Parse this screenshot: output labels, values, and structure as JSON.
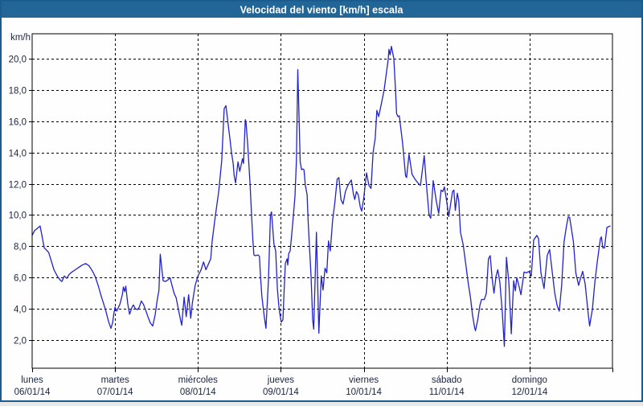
{
  "window": {
    "title": "Velocidad del viento [km/h] escala"
  },
  "colors": {
    "titlebar_bg": "#226597",
    "titlebar_text": "#ffffff",
    "window_border": "#1b5c8e",
    "chart_bg": "#fdfefd",
    "grid_line": "#000000",
    "axis_text": "#1b2440",
    "series_line": "#2222cc"
  },
  "chart_data": {
    "type": "line",
    "title": "Velocidad del viento [km/h] escala",
    "legend": "none",
    "y_axis": {
      "unit_label": "km/h",
      "ylim": [
        0.2,
        21.6
      ],
      "grid": "dashed",
      "ticks": [
        {
          "value": 20,
          "label": "20,0"
        },
        {
          "value": 18,
          "label": "18,0"
        },
        {
          "value": 16,
          "label": "16,0"
        },
        {
          "value": 14,
          "label": "14,0"
        },
        {
          "value": 12,
          "label": "12,0"
        },
        {
          "value": 10,
          "label": "10,0"
        },
        {
          "value": 8,
          "label": "8,0"
        },
        {
          "value": 6,
          "label": "6,0"
        },
        {
          "value": 4,
          "label": "4,0"
        },
        {
          "value": 2,
          "label": "2,0"
        }
      ]
    },
    "x_axis": {
      "total_hours": 168,
      "hours_per_day": 24,
      "grid": "dashed",
      "days": [
        {
          "label": "lunes",
          "date": "06/01/14",
          "start_hour": 0
        },
        {
          "label": "martes",
          "date": "07/01/14",
          "start_hour": 24
        },
        {
          "label": "miércoles",
          "date": "08/01/14",
          "start_hour": 48
        },
        {
          "label": "jueves",
          "date": "09/01/14",
          "start_hour": 72
        },
        {
          "label": "viernes",
          "date": "10/01/14",
          "start_hour": 96
        },
        {
          "label": "sábado",
          "date": "11/01/14",
          "start_hour": 120
        },
        {
          "label": "domingo",
          "date": "12/01/14",
          "start_hour": 144
        }
      ]
    },
    "series": [
      {
        "name": "velocidad del viento",
        "unit": "km/h",
        "color": "#2222cc",
        "points": [
          [
            0,
            8.7
          ],
          [
            0.7,
            9.0
          ],
          [
            2.3,
            9.3
          ],
          [
            3.0,
            8.5
          ],
          [
            3.5,
            7.9
          ],
          [
            4.2,
            7.75
          ],
          [
            4.8,
            7.6
          ],
          [
            5.5,
            7.1
          ],
          [
            6.3,
            6.5
          ],
          [
            7.4,
            6.05
          ],
          [
            8.1,
            5.85
          ],
          [
            8.6,
            5.75
          ],
          [
            9.3,
            6.1
          ],
          [
            10.0,
            5.95
          ],
          [
            10.7,
            6.2
          ],
          [
            11.5,
            6.35
          ],
          [
            12.5,
            6.5
          ],
          [
            13.5,
            6.65
          ],
          [
            14.5,
            6.8
          ],
          [
            15.5,
            6.9
          ],
          [
            16.5,
            6.75
          ],
          [
            17.5,
            6.4
          ],
          [
            18.3,
            6.05
          ],
          [
            19.1,
            5.5
          ],
          [
            20.0,
            4.8
          ],
          [
            20.6,
            4.4
          ],
          [
            21.4,
            3.8
          ],
          [
            22.1,
            3.2
          ],
          [
            22.8,
            2.75
          ],
          [
            23.3,
            3.1
          ],
          [
            23.6,
            3.6
          ],
          [
            24.0,
            4.1
          ],
          [
            24.5,
            3.85
          ],
          [
            25.4,
            4.3
          ],
          [
            26.1,
            4.9
          ],
          [
            26.4,
            5.4
          ],
          [
            26.8,
            5.1
          ],
          [
            27.1,
            5.45
          ],
          [
            27.7,
            4.3
          ],
          [
            28.2,
            3.65
          ],
          [
            28.9,
            4.1
          ],
          [
            29.3,
            4.25
          ],
          [
            29.9,
            4.0
          ],
          [
            30.5,
            3.95
          ],
          [
            31.0,
            4.1
          ],
          [
            31.6,
            4.5
          ],
          [
            32.2,
            4.3
          ],
          [
            32.8,
            3.95
          ],
          [
            33.5,
            3.5
          ],
          [
            34.2,
            3.1
          ],
          [
            34.9,
            2.9
          ],
          [
            35.6,
            3.6
          ],
          [
            36.3,
            4.7
          ],
          [
            36.7,
            5.15
          ],
          [
            37.1,
            7.5
          ],
          [
            37.9,
            5.8
          ],
          [
            38.6,
            5.75
          ],
          [
            39.3,
            5.85
          ],
          [
            39.9,
            6.0
          ],
          [
            40.6,
            5.4
          ],
          [
            41.1,
            5.0
          ],
          [
            41.7,
            4.7
          ],
          [
            42.4,
            3.9
          ],
          [
            43.05,
            3.2
          ],
          [
            43.3,
            2.95
          ],
          [
            44.0,
            4.75
          ],
          [
            44.6,
            3.5
          ],
          [
            45.3,
            4.9
          ],
          [
            45.9,
            3.4
          ],
          [
            46.4,
            4.4
          ],
          [
            47.2,
            5.5
          ],
          [
            48.0,
            6.1
          ],
          [
            48.9,
            6.5
          ],
          [
            49.6,
            7.0
          ],
          [
            50.3,
            6.5
          ],
          [
            51.1,
            6.9
          ],
          [
            51.7,
            7.2
          ],
          [
            52.1,
            8.3
          ],
          [
            53.0,
            9.9
          ],
          [
            54.0,
            11.5
          ],
          [
            54.9,
            13.5
          ],
          [
            55.6,
            16.8
          ],
          [
            56.1,
            17.0
          ],
          [
            56.8,
            15.7
          ],
          [
            57.2,
            15.0
          ],
          [
            57.7,
            14.0
          ],
          [
            58.2,
            13.3
          ],
          [
            58.5,
            12.5
          ],
          [
            58.9,
            12.05
          ],
          [
            59.6,
            13.4
          ],
          [
            60.1,
            12.8
          ],
          [
            60.9,
            13.6
          ],
          [
            61.2,
            13.3
          ],
          [
            61.7,
            16.1
          ],
          [
            61.9,
            16.0
          ],
          [
            62.4,
            14.5
          ],
          [
            63.1,
            11.9
          ],
          [
            63.5,
            10.1
          ],
          [
            63.9,
            8.4
          ],
          [
            64.2,
            7.45
          ],
          [
            64.6,
            7.4
          ],
          [
            65.4,
            7.45
          ],
          [
            65.8,
            7.35
          ],
          [
            66.1,
            6.1
          ],
          [
            66.5,
            4.8
          ],
          [
            67.2,
            3.5
          ],
          [
            67.7,
            2.75
          ],
          [
            68.4,
            5.85
          ],
          [
            69.0,
            10.0
          ],
          [
            69.3,
            10.2
          ],
          [
            70.0,
            8.15
          ],
          [
            70.5,
            7.7
          ],
          [
            71.0,
            5.3
          ],
          [
            71.4,
            4.2
          ],
          [
            71.7,
            3.7
          ],
          [
            72.1,
            3.15
          ],
          [
            72.6,
            3.3
          ],
          [
            72.9,
            4.9
          ],
          [
            73.3,
            6.9
          ],
          [
            73.8,
            7.2
          ],
          [
            74.0,
            6.8
          ],
          [
            74.3,
            7.55
          ],
          [
            74.7,
            7.7
          ],
          [
            75.2,
            8.9
          ],
          [
            75.6,
            9.9
          ],
          [
            76.1,
            11.2
          ],
          [
            76.5,
            13.5
          ],
          [
            76.9,
            19.3
          ],
          [
            77.3,
            16.0
          ],
          [
            77.6,
            13.4
          ],
          [
            78.0,
            12.9
          ],
          [
            78.4,
            12.95
          ],
          [
            78.7,
            12.9
          ],
          [
            79.1,
            11.9
          ],
          [
            79.6,
            11.3
          ],
          [
            79.9,
            9.6
          ],
          [
            80.3,
            7.9
          ],
          [
            80.75,
            6.1
          ],
          [
            81.2,
            3.3
          ],
          [
            81.5,
            2.7
          ],
          [
            82.3,
            8.9
          ],
          [
            83.0,
            2.45
          ],
          [
            83.7,
            6.1
          ],
          [
            84.2,
            5.2
          ],
          [
            84.8,
            6.6
          ],
          [
            85.3,
            6.3
          ],
          [
            85.8,
            8.35
          ],
          [
            86.3,
            7.7
          ],
          [
            87.0,
            9.7
          ],
          [
            87.6,
            10.75
          ],
          [
            88.3,
            12.3
          ],
          [
            88.8,
            12.4
          ],
          [
            89.4,
            11.0
          ],
          [
            90.0,
            10.7
          ],
          [
            90.7,
            11.5
          ],
          [
            91.4,
            11.9
          ],
          [
            92.4,
            12.25
          ],
          [
            93.0,
            11.35
          ],
          [
            93.4,
            11.0
          ],
          [
            93.9,
            11.5
          ],
          [
            94.4,
            11.3
          ],
          [
            95.0,
            10.5
          ],
          [
            95.4,
            10.25
          ],
          [
            96.0,
            11.1
          ],
          [
            96.8,
            12.7
          ],
          [
            97.5,
            11.9
          ],
          [
            98.1,
            11.7
          ],
          [
            98.7,
            14.0
          ],
          [
            99.3,
            14.9
          ],
          [
            99.8,
            16.7
          ],
          [
            100.3,
            16.3
          ],
          [
            100.8,
            16.8
          ],
          [
            101.9,
            18.0
          ],
          [
            103.1,
            20.0
          ],
          [
            103.3,
            20.6
          ],
          [
            103.65,
            20.25
          ],
          [
            104.0,
            20.8
          ],
          [
            104.7,
            20.0
          ],
          [
            105.2,
            18.0
          ],
          [
            105.5,
            16.5
          ],
          [
            105.9,
            16.3
          ],
          [
            106.3,
            16.35
          ],
          [
            107.25,
            14.6
          ],
          [
            108.1,
            12.5
          ],
          [
            108.4,
            12.4
          ],
          [
            109.1,
            13.9
          ],
          [
            110.0,
            12.6
          ],
          [
            111.0,
            12.25
          ],
          [
            111.9,
            12.0
          ],
          [
            112.4,
            11.9
          ],
          [
            113.5,
            13.8
          ],
          [
            114.2,
            11.8
          ],
          [
            114.9,
            10.0
          ],
          [
            115.4,
            9.8
          ],
          [
            116.1,
            12.2
          ],
          [
            117.0,
            10.9
          ],
          [
            117.7,
            10.1
          ],
          [
            118.4,
            11.6
          ],
          [
            118.9,
            11.5
          ],
          [
            119.35,
            11.8
          ],
          [
            120.0,
            10.9
          ],
          [
            120.6,
            9.9
          ],
          [
            121.7,
            11.5
          ],
          [
            122.1,
            11.6
          ],
          [
            122.5,
            10.3
          ],
          [
            123.1,
            11.4
          ],
          [
            123.5,
            10.9
          ],
          [
            124.0,
            8.9
          ],
          [
            124.8,
            8.1
          ],
          [
            125.5,
            6.9
          ],
          [
            126.2,
            5.7
          ],
          [
            126.9,
            4.7
          ],
          [
            127.5,
            3.6
          ],
          [
            128.1,
            2.8
          ],
          [
            128.35,
            2.6
          ],
          [
            129.0,
            3.3
          ],
          [
            129.6,
            4.2
          ],
          [
            130.1,
            4.6
          ],
          [
            130.9,
            4.6
          ],
          [
            131.5,
            5.0
          ],
          [
            132.1,
            7.2
          ],
          [
            132.6,
            7.4
          ],
          [
            133.2,
            5.9
          ],
          [
            133.7,
            5.0
          ],
          [
            134.3,
            6.1
          ],
          [
            134.8,
            6.5
          ],
          [
            135.4,
            5.7
          ],
          [
            136.1,
            3.8
          ],
          [
            136.7,
            1.6
          ],
          [
            137.3,
            7.3
          ],
          [
            138.0,
            5.7
          ],
          [
            138.7,
            2.4
          ],
          [
            139.4,
            5.8
          ],
          [
            139.9,
            5.15
          ],
          [
            140.3,
            6.0
          ],
          [
            140.9,
            5.5
          ],
          [
            141.5,
            4.9
          ],
          [
            142.4,
            6.35
          ],
          [
            143.1,
            6.3
          ],
          [
            143.8,
            6.4
          ],
          [
            144.5,
            6.1
          ],
          [
            145.2,
            8.4
          ],
          [
            146.1,
            8.7
          ],
          [
            146.6,
            8.5
          ],
          [
            147.3,
            6.3
          ],
          [
            148.2,
            5.3
          ],
          [
            149.1,
            7.4
          ],
          [
            149.8,
            7.8
          ],
          [
            150.6,
            6.3
          ],
          [
            151.3,
            5.0
          ],
          [
            152.0,
            4.2
          ],
          [
            152.6,
            3.85
          ],
          [
            153.3,
            5.5
          ],
          [
            154.0,
            8.3
          ],
          [
            154.7,
            9.3
          ],
          [
            155.2,
            9.9
          ],
          [
            155.6,
            9.85
          ],
          [
            156.2,
            9.0
          ],
          [
            156.7,
            8.3
          ],
          [
            157.4,
            6.3
          ],
          [
            158.2,
            5.5
          ],
          [
            158.8,
            6.0
          ],
          [
            159.4,
            6.4
          ],
          [
            160.1,
            5.6
          ],
          [
            161.0,
            3.65
          ],
          [
            161.4,
            2.9
          ],
          [
            162.2,
            4.0
          ],
          [
            162.9,
            5.7
          ],
          [
            163.6,
            7.0
          ],
          [
            164.5,
            8.5
          ],
          [
            164.8,
            8.6
          ],
          [
            165.2,
            7.9
          ],
          [
            165.7,
            7.9
          ],
          [
            166.4,
            9.2
          ],
          [
            167.3,
            9.3
          ]
        ]
      }
    ]
  }
}
